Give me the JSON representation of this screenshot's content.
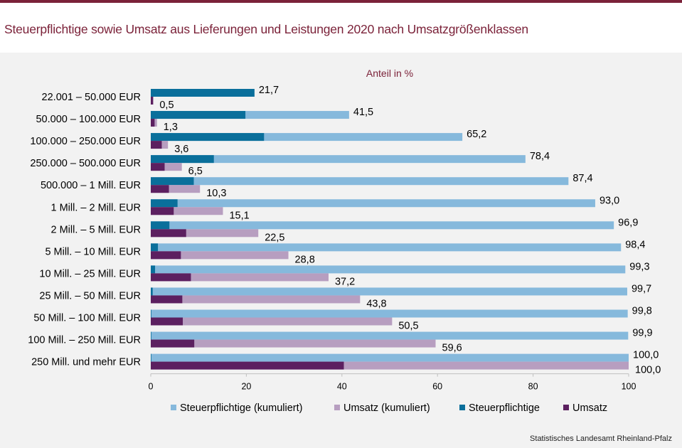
{
  "title": "Steuerpflichtige sowie Umsatz aus Lieferungen und Leistungen 2020 nach Umsatzgrößenklassen",
  "source": "Statistisches Landesamt Rheinland-Pfalz",
  "colors": {
    "title": "#7b2239",
    "steuerpflichtige_kumuliert": "#86b9dc",
    "umsatz_kumuliert": "#b79ec0",
    "steuerpflichtige": "#0a6f9b",
    "umsatz": "#5c2060"
  },
  "chart_data": {
    "type": "bar",
    "orientation": "horizontal",
    "subtitle": "Anteil in %",
    "xlim": [
      0,
      100
    ],
    "xticks": [
      0,
      20,
      40,
      60,
      80,
      100
    ],
    "categories": [
      "22.001 – 50.000 EUR",
      "50.000 – 100.000 EUR",
      "100.000 – 250.000 EUR",
      "250.000 – 500.000 EUR",
      "500.000 – 1 Mill. EUR",
      "1 Mill. – 2 Mill. EUR",
      "2 Mill. – 5 Mill. EUR",
      "5 Mill. – 10 Mill. EUR",
      "10 Mill. – 25 Mill. EUR",
      "25 Mill. – 50 Mill. EUR",
      "50 Mill. – 100 Mill. EUR",
      "100 Mill. – 250 Mill. EUR",
      "250 Mill. und mehr EUR"
    ],
    "series": [
      {
        "name": "Steuerpflichtige (kumuliert)",
        "key": "steuerpflichtige_kumuliert",
        "values": [
          21.7,
          41.5,
          65.2,
          78.4,
          87.4,
          93.0,
          96.9,
          98.4,
          99.3,
          99.7,
          99.8,
          99.9,
          100.0
        ],
        "labels": [
          "21,7",
          "41,5",
          "65,2",
          "78,4",
          "87,4",
          "93,0",
          "96,9",
          "98,4",
          "99,3",
          "99,7",
          "99,8",
          "99,9",
          "100,0"
        ]
      },
      {
        "name": "Umsatz (kumuliert)",
        "key": "umsatz_kumuliert",
        "values": [
          0.5,
          1.3,
          3.6,
          6.5,
          10.3,
          15.1,
          22.5,
          28.8,
          37.2,
          43.8,
          50.5,
          59.6,
          100.0
        ],
        "labels": [
          "0,5",
          "1,3",
          "3,6",
          "6,5",
          "10,3",
          "15,1",
          "22,5",
          "28,8",
          "37,2",
          "43,8",
          "50,5",
          "59,6",
          "100,0"
        ]
      },
      {
        "name": "Steuerpflichtige",
        "key": "steuerpflichtige",
        "values": [
          21.7,
          19.8,
          23.7,
          13.2,
          9.0,
          5.6,
          3.9,
          1.5,
          0.9,
          0.4,
          0.1,
          0.1,
          0.1
        ]
      },
      {
        "name": "Umsatz",
        "key": "umsatz",
        "values": [
          0.5,
          0.8,
          2.3,
          2.9,
          3.8,
          4.8,
          7.4,
          6.3,
          8.4,
          6.6,
          6.7,
          9.1,
          40.4
        ]
      }
    ],
    "legend_position": "bottom"
  }
}
